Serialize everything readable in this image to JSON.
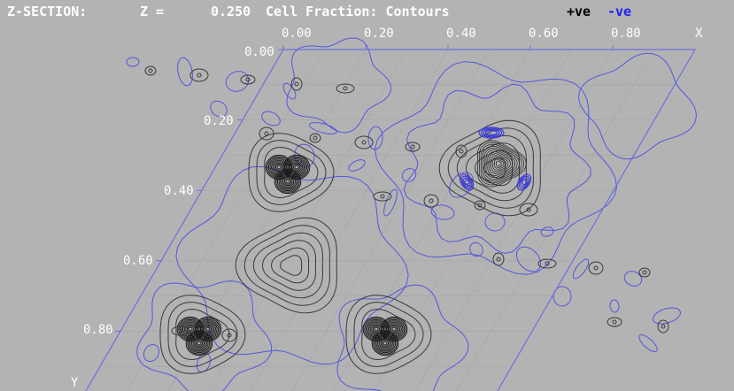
{
  "header": {
    "section_label": "Z-SECTION:",
    "z_label": "Z =",
    "z_value": "0.250",
    "mode": "Cell Fraction: Contours",
    "legend_positive": "+ve",
    "legend_negative": "-ve",
    "colors": {
      "text": "#ffffff",
      "positive": "#000000",
      "negative": "#2222ee"
    }
  },
  "axes": {
    "x_label": "X",
    "y_label": "Y",
    "x_ticks": [
      "0.00",
      "0.20",
      "0.40",
      "0.60",
      "0.80"
    ],
    "y_ticks": [
      "0.00",
      "0.20",
      "0.40",
      "0.60",
      "0.80"
    ]
  },
  "colors": {
    "background": "#b3b3b3",
    "cell_outline": "#6f6fdd",
    "grid": "#a5a5a5",
    "positive_contour": "#3a3a3a",
    "negative_contour": "#5656e0"
  }
}
